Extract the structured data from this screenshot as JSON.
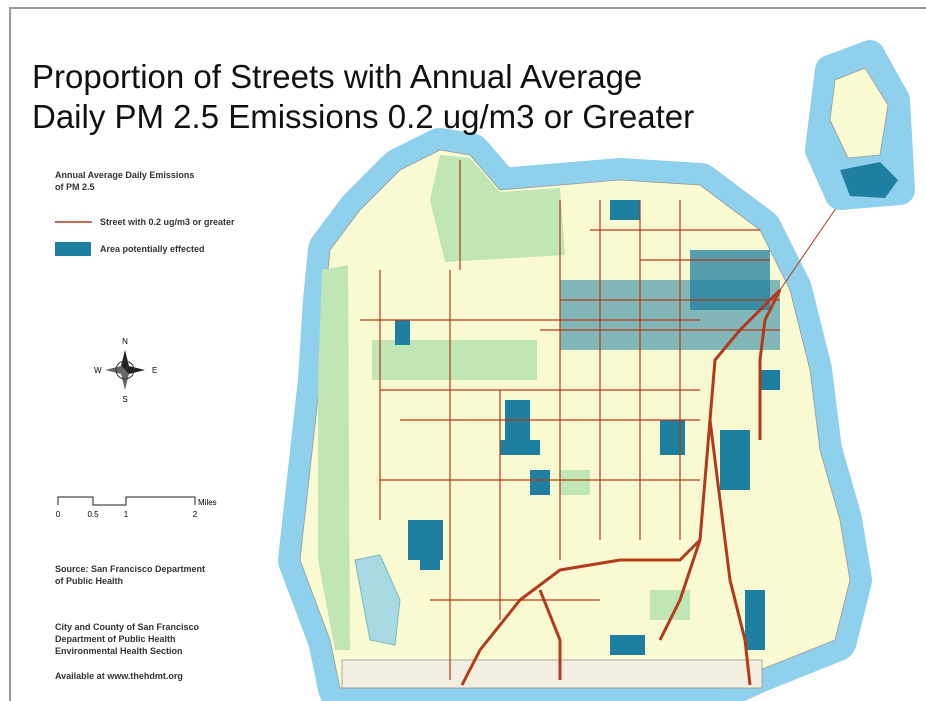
{
  "title": {
    "lines": [
      "Proportion of Streets with Annual Average",
      "Daily PM 2.5 Emissions 0.2 ug/m3 or Greater"
    ]
  },
  "legend": {
    "title_lines": [
      "Annual Average Daily Emissions",
      "of PM 2.5"
    ],
    "items": [
      {
        "label": "Street with 0.2 ug/m3 or greater"
      },
      {
        "label": "Area potentially effected"
      }
    ]
  },
  "compass": {
    "north": "N",
    "south": "S",
    "east": "E",
    "west": "W"
  },
  "scale_bar": {
    "labels": [
      "0",
      "0.5",
      "1",
      "2"
    ],
    "unit": "Miles"
  },
  "source": {
    "lines": [
      "Source: San Francisco Department",
      "of Public Health"
    ]
  },
  "credit": {
    "lines": [
      "City and County of San Francisco",
      "Department of Public Health",
      "Environmental Health Section"
    ]
  },
  "availability": "Available at www.thehdmt.org"
}
